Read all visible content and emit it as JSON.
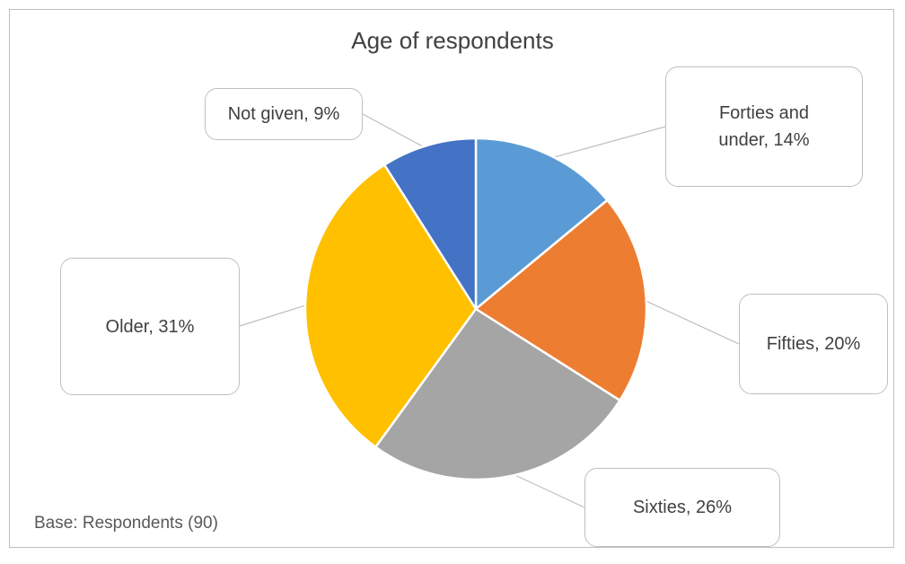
{
  "chart_data": {
    "type": "pie",
    "title": "Age of respondents",
    "footnote": "Base: Respondents (90)",
    "slices": [
      {
        "label": "Forties and under",
        "percent_text": "14%",
        "value": 14,
        "color": "#5b9bd5"
      },
      {
        "label": "Fifties",
        "percent_text": "20%",
        "value": 20,
        "color": "#ed7d31"
      },
      {
        "label": "Sixties",
        "percent_text": "26%",
        "value": 26,
        "color": "#a5a5a5"
      },
      {
        "label": "Older",
        "percent_text": "31%",
        "value": 31,
        "color": "#ffc000"
      },
      {
        "label": "Not given",
        "percent_text": "9%",
        "value": 9,
        "color": "#4472c4"
      }
    ],
    "callout_text": [
      "Forties and\nunder, 14%",
      "Fifties, 20%",
      "Sixties, 26%",
      "Older, 31%",
      "Not given, 9%"
    ],
    "legend": "none",
    "data_labels": "callouts"
  }
}
